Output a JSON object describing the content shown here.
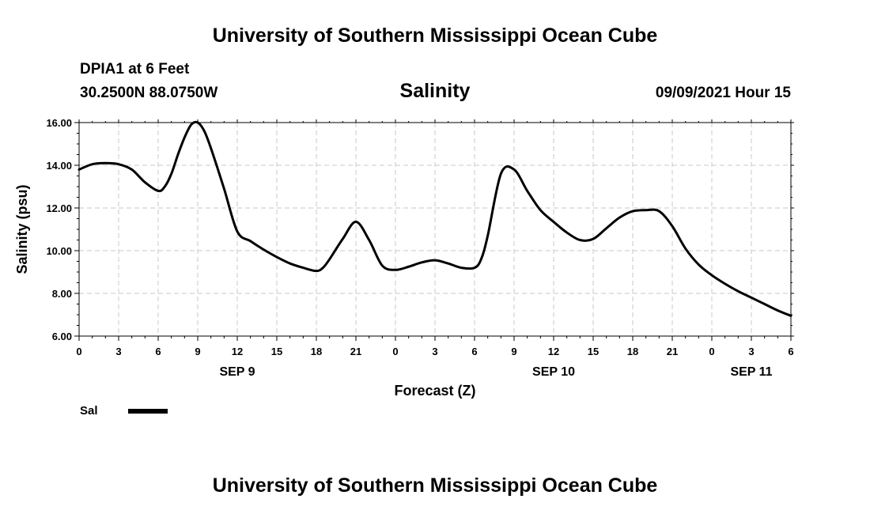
{
  "header": {
    "title": "University of Southern Mississippi Ocean Cube",
    "station": "DPIA1 at 6 Feet",
    "coords": "30.2500N  88.0750W",
    "datetime": "09/09/2021 Hour 15"
  },
  "footer": {
    "title": "University of Southern Mississippi Ocean Cube"
  },
  "chart_data": {
    "type": "line",
    "title": "Salinity",
    "xlabel": "Forecast (Z)",
    "ylabel": "Salinity (psu)",
    "ylim": [
      6,
      16
    ],
    "xlim": [
      0,
      54
    ],
    "x_unit": "forecast hours from 00Z SEP 9",
    "y_ticks": [
      "6.00",
      "8.00",
      "10.00",
      "12.00",
      "14.00",
      "16.00"
    ],
    "x_ticks": [
      {
        "hour": 0,
        "label": "0"
      },
      {
        "hour": 3,
        "label": "3"
      },
      {
        "hour": 6,
        "label": "6"
      },
      {
        "hour": 9,
        "label": "9"
      },
      {
        "hour": 12,
        "label": "12"
      },
      {
        "hour": 15,
        "label": "15"
      },
      {
        "hour": 18,
        "label": "18"
      },
      {
        "hour": 21,
        "label": "21"
      },
      {
        "hour": 24,
        "label": "0"
      },
      {
        "hour": 27,
        "label": "3"
      },
      {
        "hour": 30,
        "label": "6"
      },
      {
        "hour": 33,
        "label": "9"
      },
      {
        "hour": 36,
        "label": "12"
      },
      {
        "hour": 39,
        "label": "15"
      },
      {
        "hour": 42,
        "label": "18"
      },
      {
        "hour": 45,
        "label": "21"
      },
      {
        "hour": 48,
        "label": "0"
      },
      {
        "hour": 51,
        "label": "3"
      },
      {
        "hour": 54,
        "label": "6"
      }
    ],
    "day_labels": [
      {
        "hour": 12,
        "label": "SEP 9"
      },
      {
        "hour": 36,
        "label": "SEP 10"
      },
      {
        "hour": 51,
        "label": "SEP 11"
      }
    ],
    "grid": true,
    "legend": "bottom-left",
    "series": [
      {
        "name": "Sal",
        "color": "#000000",
        "x": [
          0,
          1,
          2,
          3,
          4,
          5,
          6,
          6.5,
          7,
          7.5,
          8,
          8.5,
          9,
          9.5,
          10,
          11,
          12,
          13,
          14,
          15,
          16,
          17,
          18,
          18.5,
          19,
          20,
          21,
          22,
          23,
          24,
          25,
          26,
          27,
          28,
          29,
          30,
          30.5,
          31,
          32,
          33,
          34,
          35,
          36,
          37,
          38,
          39,
          40,
          41,
          42,
          43,
          44,
          45,
          46,
          47,
          48,
          49,
          50,
          51,
          52,
          53,
          54
        ],
        "y": [
          13.8,
          14.05,
          14.1,
          14.05,
          13.8,
          13.2,
          12.8,
          13.0,
          13.6,
          14.5,
          15.3,
          15.9,
          16.0,
          15.6,
          14.8,
          12.9,
          10.9,
          10.45,
          10.05,
          9.7,
          9.4,
          9.2,
          9.05,
          9.2,
          9.6,
          10.55,
          11.35,
          10.5,
          9.3,
          9.1,
          9.25,
          9.45,
          9.55,
          9.4,
          9.2,
          9.2,
          9.6,
          10.7,
          13.6,
          13.8,
          12.8,
          11.9,
          11.35,
          10.85,
          10.5,
          10.55,
          11.05,
          11.55,
          11.85,
          11.9,
          11.85,
          11.15,
          10.1,
          9.35,
          8.85,
          8.45,
          8.1,
          7.8,
          7.5,
          7.2,
          6.95
        ]
      }
    ]
  }
}
